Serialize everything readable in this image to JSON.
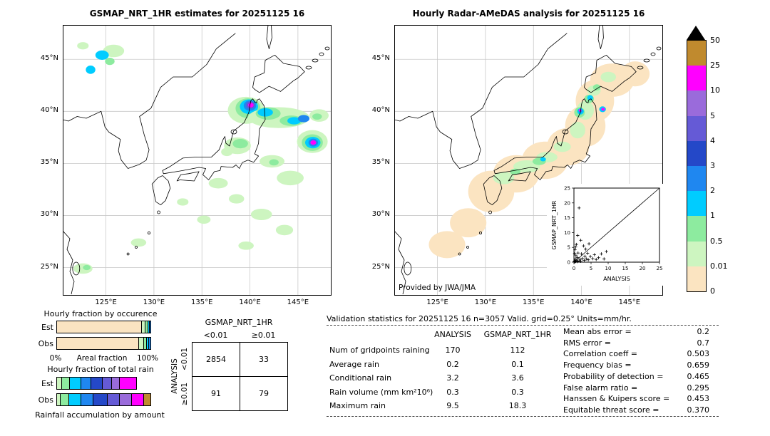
{
  "left_map": {
    "title": "GSMAP_NRT_1HR estimates for 20251125 16"
  },
  "right_map": {
    "title": "Hourly Radar-AMeDAS analysis for 20251125 16",
    "credit": "Provided by JWA/JMA"
  },
  "geo": {
    "lat_ticks": [
      {
        "value": 45,
        "label": "45°N"
      },
      {
        "value": 40,
        "label": "40°N"
      },
      {
        "value": 35,
        "label": "35°N"
      },
      {
        "value": 30,
        "label": "30°N"
      },
      {
        "value": 25,
        "label": "25°N"
      }
    ],
    "lon_ticks": [
      {
        "value": 125,
        "label": "125°E"
      },
      {
        "value": 130,
        "label": "130°E"
      },
      {
        "value": 135,
        "label": "135°E"
      },
      {
        "value": 140,
        "label": "140°E"
      },
      {
        "value": 145,
        "label": "145°E"
      }
    ]
  },
  "colorbar": {
    "labels": [
      "50",
      "25",
      "10",
      "5",
      "4",
      "3",
      "2",
      "1",
      "0.5",
      "0.01",
      "0"
    ],
    "colors": [
      "#c08a2e",
      "#ff00ff",
      "#9a6bdb",
      "#655ad6",
      "#2448c8",
      "#1f87f0",
      "#00ccff",
      "#8deb9f",
      "#cdf5c0",
      "#fbe4c1"
    ],
    "overflow_color": "#000000",
    "units": "mm/hr"
  },
  "occurrence_chart": {
    "title": "Hourly fraction by occurence",
    "axis_min": "0%",
    "axis_max": "100%",
    "axis_label": "Areal fraction"
  },
  "total_chart": {
    "title": "Hourly fraction of total rain",
    "caption": "Rainfall accumulation by amount"
  },
  "contingency": {
    "top_title": "GSMAP_NRT_1HR",
    "side_title": "ANALYSIS",
    "col_labels": [
      "<0.01",
      "≥0.01"
    ],
    "row_labels": [
      "<0.01",
      "≥0.01"
    ],
    "values": [
      [
        "2854",
        "33"
      ],
      [
        "91",
        "79"
      ]
    ]
  },
  "validation": {
    "title": "Validation statistics for 20251125 16  n=3057 Valid. grid=0.25° Units=mm/hr.",
    "columns": [
      "ANALYSIS",
      "GSMAP_NRT_1HR"
    ],
    "rows": [
      {
        "label": "Num of gridpoints raining",
        "values": [
          "170",
          "112"
        ]
      },
      {
        "label": "Average rain",
        "values": [
          "0.2",
          "0.1"
        ]
      },
      {
        "label": "Conditional rain",
        "values": [
          "3.2",
          "3.6"
        ]
      },
      {
        "label": "Rain volume (mm km²10⁶)",
        "values": [
          "0.3",
          "0.3"
        ]
      },
      {
        "label": "Maximum rain",
        "values": [
          "9.5",
          "18.3"
        ]
      }
    ]
  },
  "scores": [
    {
      "label": "Mean abs error",
      "value": "0.2"
    },
    {
      "label": "RMS error",
      "value": "0.7"
    },
    {
      "label": "Correlation coeff",
      "value": "0.503"
    },
    {
      "label": "Frequency bias",
      "value": "0.659"
    },
    {
      "label": "Probability of detection",
      "value": "0.465"
    },
    {
      "label": "False alarm ratio",
      "value": "0.295"
    },
    {
      "label": "Hanssen & Kuipers score",
      "value": "0.453"
    },
    {
      "label": "Equitable threat score",
      "value": "0.370"
    }
  ],
  "chart_data": [
    {
      "name": "gsmap_map",
      "type": "heatmap",
      "title": "GSMAP_NRT_1HR estimates for 20251125 16",
      "units": "mm/hr",
      "lon_range": [
        120.5,
        148.5
      ],
      "lat_range": [
        22.3,
        48.3
      ],
      "scale_levels": [
        0,
        0.01,
        0.5,
        1,
        2,
        3,
        4,
        5,
        10,
        25,
        50
      ],
      "blobs": [
        [
          125.8,
          45.8,
          1.1,
          0.6,
          "#cdf5c0"
        ],
        [
          124.6,
          45.4,
          0.7,
          0.45,
          "#00ccff"
        ],
        [
          125.4,
          44.8,
          0.5,
          0.35,
          "#8deb9f"
        ],
        [
          123.4,
          44.0,
          0.5,
          0.4,
          "#00ccff"
        ],
        [
          122.6,
          46.3,
          0.6,
          0.35,
          "#cdf5c0"
        ],
        [
          139.6,
          40.1,
          1.9,
          1.3,
          "#cdf5c0"
        ],
        [
          139.8,
          40.3,
          1.3,
          0.95,
          "#8deb9f"
        ],
        [
          139.9,
          40.45,
          0.95,
          0.7,
          "#00ccff"
        ],
        [
          140.0,
          40.55,
          0.65,
          0.5,
          "#1f87f0"
        ],
        [
          140.05,
          40.6,
          0.45,
          0.35,
          "#655ad6"
        ],
        [
          140.1,
          40.6,
          0.28,
          0.22,
          "#ff00ff"
        ],
        [
          143.0,
          39.4,
          3.2,
          1.0,
          "#cdf5c0"
        ],
        [
          141.9,
          39.8,
          1.3,
          0.6,
          "#8deb9f"
        ],
        [
          141.6,
          39.9,
          0.8,
          0.4,
          "#00ccff"
        ],
        [
          144.3,
          39.1,
          1.2,
          0.5,
          "#8deb9f"
        ],
        [
          144.6,
          39.1,
          0.7,
          0.35,
          "#00ccff"
        ],
        [
          145.6,
          39.3,
          0.6,
          0.35,
          "#1f87f0"
        ],
        [
          147.2,
          39.6,
          1.0,
          0.6,
          "#cdf5c0"
        ],
        [
          147.0,
          39.5,
          0.5,
          0.3,
          "#8deb9f"
        ],
        [
          146.5,
          37.1,
          1.6,
          1.1,
          "#cdf5c0"
        ],
        [
          146.5,
          37.0,
          1.1,
          0.8,
          "#8deb9f"
        ],
        [
          146.55,
          37.0,
          0.8,
          0.55,
          "#00ccff"
        ],
        [
          146.6,
          37.0,
          0.5,
          0.38,
          "#1f87f0"
        ],
        [
          146.6,
          37.0,
          0.3,
          0.22,
          "#ff00ff"
        ],
        [
          138.7,
          36.7,
          1.4,
          0.8,
          "#cdf5c0"
        ],
        [
          139.0,
          36.9,
          0.8,
          0.45,
          "#8deb9f"
        ],
        [
          137.6,
          36.1,
          0.6,
          0.4,
          "#cdf5c0"
        ],
        [
          142.3,
          35.2,
          1.3,
          0.6,
          "#cdf5c0"
        ],
        [
          142.5,
          35.1,
          0.5,
          0.3,
          "#8deb9f"
        ],
        [
          144.2,
          33.6,
          1.4,
          0.7,
          "#cdf5c0"
        ],
        [
          136.7,
          33.1,
          1.0,
          0.5,
          "#cdf5c0"
        ],
        [
          138.6,
          31.6,
          0.8,
          0.45,
          "#cdf5c0"
        ],
        [
          141.2,
          30.1,
          1.1,
          0.55,
          "#cdf5c0"
        ],
        [
          143.6,
          28.6,
          0.9,
          0.5,
          "#cdf5c0"
        ],
        [
          135.2,
          29.6,
          0.7,
          0.4,
          "#cdf5c0"
        ],
        [
          139.6,
          27.1,
          0.8,
          0.4,
          "#cdf5c0"
        ],
        [
          133.0,
          31.3,
          0.6,
          0.35,
          "#cdf5c0"
        ],
        [
          128.4,
          27.4,
          0.8,
          0.4,
          "#cdf5c0"
        ],
        [
          122.6,
          24.9,
          1.0,
          0.5,
          "#cdf5c0"
        ],
        [
          123.0,
          25.0,
          0.4,
          0.25,
          "#8deb9f"
        ]
      ]
    },
    {
      "name": "radar_map",
      "type": "heatmap",
      "title": "Hourly Radar-AMeDAS analysis for 20251125 16",
      "units": "mm/hr",
      "lon_range": [
        120.5,
        148.5
      ],
      "lat_range": [
        22.3,
        48.3
      ],
      "scale_levels": [
        0,
        0.01,
        0.5,
        1,
        2,
        3,
        4,
        5,
        10,
        25,
        50
      ],
      "blobs": [
        [
          126.0,
          27.2,
          1.9,
          1.3,
          "#fbe4c1"
        ],
        [
          128.2,
          29.3,
          1.9,
          1.4,
          "#fbe4c1"
        ],
        [
          130.6,
          32.3,
          2.4,
          2.0,
          "#fbe4c1"
        ],
        [
          133.2,
          34.0,
          2.4,
          1.8,
          "#fbe4c1"
        ],
        [
          136.2,
          35.3,
          2.4,
          1.8,
          "#fbe4c1"
        ],
        [
          138.6,
          36.6,
          2.2,
          1.8,
          "#fbe4c1"
        ],
        [
          140.4,
          38.6,
          2.1,
          2.0,
          "#fbe4c1"
        ],
        [
          141.4,
          41.0,
          2.0,
          2.0,
          "#fbe4c1"
        ],
        [
          143.2,
          43.0,
          2.3,
          1.6,
          "#fbe4c1"
        ],
        [
          145.6,
          43.6,
          1.5,
          1.2,
          "#fbe4c1"
        ],
        [
          131.9,
          33.6,
          1.1,
          0.6,
          "#cdf5c0"
        ],
        [
          134.3,
          34.7,
          1.4,
          0.6,
          "#cdf5c0"
        ],
        [
          136.4,
          35.6,
          1.1,
          0.5,
          "#cdf5c0"
        ],
        [
          138.0,
          36.6,
          0.9,
          0.5,
          "#cdf5c0"
        ],
        [
          139.6,
          38.2,
          0.8,
          0.8,
          "#cdf5c0"
        ],
        [
          140.4,
          40.1,
          0.9,
          0.9,
          "#cdf5c0"
        ],
        [
          141.3,
          42.0,
          0.7,
          0.5,
          "#cdf5c0"
        ],
        [
          142.8,
          43.3,
          0.8,
          0.5,
          "#cdf5c0"
        ],
        [
          135.6,
          35.2,
          0.7,
          0.35,
          "#8deb9f"
        ],
        [
          133.1,
          34.2,
          0.55,
          0.3,
          "#8deb9f"
        ],
        [
          139.8,
          39.9,
          0.55,
          0.5,
          "#8deb9f"
        ],
        [
          140.8,
          41.2,
          0.5,
          0.4,
          "#8deb9f"
        ],
        [
          141.6,
          42.3,
          0.4,
          0.3,
          "#8deb9f"
        ],
        [
          139.9,
          40.0,
          0.35,
          0.3,
          "#00ccff"
        ],
        [
          140.9,
          41.3,
          0.3,
          0.25,
          "#00ccff"
        ],
        [
          136.0,
          35.4,
          0.3,
          0.2,
          "#00ccff"
        ],
        [
          142.2,
          40.2,
          0.35,
          0.28,
          "#00ccff"
        ],
        [
          139.9,
          40.05,
          0.2,
          0.17,
          "#1f87f0"
        ],
        [
          139.85,
          40.1,
          0.14,
          0.12,
          "#ff00ff"
        ],
        [
          142.25,
          40.2,
          0.18,
          0.14,
          "#ff00ff"
        ]
      ]
    },
    {
      "name": "validation_scatter",
      "type": "scatter",
      "xlabel": "ANALYSIS",
      "ylabel": "GSMAP_NRT_1HR",
      "xlim": [
        0,
        25
      ],
      "ylim": [
        0,
        25
      ],
      "ticks": [
        0,
        5,
        10,
        15,
        20,
        25
      ],
      "identity_line": true,
      "points": [
        [
          0.1,
          0.1
        ],
        [
          0.2,
          0.4
        ],
        [
          0.3,
          0.1
        ],
        [
          0.4,
          1.1
        ],
        [
          0.5,
          0.3
        ],
        [
          0.6,
          2.2
        ],
        [
          0.8,
          0.7
        ],
        [
          1.0,
          0.2
        ],
        [
          1.0,
          1.6
        ],
        [
          1.2,
          3.1
        ],
        [
          1.5,
          0.4
        ],
        [
          1.5,
          18.3
        ],
        [
          1.8,
          1.0
        ],
        [
          2.0,
          0.3
        ],
        [
          2.2,
          2.8
        ],
        [
          2.5,
          1.2
        ],
        [
          2.8,
          5.5
        ],
        [
          3.0,
          0.6
        ],
        [
          3.2,
          2.0
        ],
        [
          3.6,
          1.1
        ],
        [
          4.0,
          3.0
        ],
        [
          4.2,
          0.8
        ],
        [
          4.8,
          1.9
        ],
        [
          5.5,
          1.2
        ],
        [
          6.0,
          2.5
        ],
        [
          6.5,
          0.9
        ],
        [
          7.2,
          1.5
        ],
        [
          8.0,
          2.8
        ],
        [
          8.8,
          1.1
        ],
        [
          9.5,
          3.6
        ],
        [
          0.3,
          4.2
        ],
        [
          0.7,
          6.0
        ],
        [
          2.0,
          7.4
        ],
        [
          1.1,
          9.0
        ],
        [
          0.2,
          2.9
        ],
        [
          3.4,
          4.4
        ],
        [
          0.5,
          5.1
        ],
        [
          4.4,
          6.2
        ]
      ]
    },
    {
      "name": "occurrence_fraction",
      "type": "bar",
      "title": "Hourly fraction by occurence",
      "xlabel": "Areal fraction",
      "x_range_pct": [
        0,
        100
      ],
      "rows": [
        {
          "label": "Est",
          "segments": [
            {
              "color": "#fbe4c1",
              "pct": 91
            },
            {
              "color": "#cdf5c0",
              "pct": 4
            },
            {
              "color": "#8deb9f",
              "pct": 2.5
            },
            {
              "color": "#00ccff",
              "pct": 1.5
            },
            {
              "color": "#1f87f0",
              "pct": 1
            }
          ]
        },
        {
          "label": "Obs",
          "segments": [
            {
              "color": "#fbe4c1",
              "pct": 88
            },
            {
              "color": "#cdf5c0",
              "pct": 5
            },
            {
              "color": "#8deb9f",
              "pct": 3.5
            },
            {
              "color": "#00ccff",
              "pct": 2.2
            },
            {
              "color": "#1f87f0",
              "pct": 1.3
            }
          ]
        }
      ]
    },
    {
      "name": "total_rain_fraction",
      "type": "bar",
      "title": "Hourly fraction of total rain",
      "caption": "Rainfall accumulation by amount",
      "x_range_pct": [
        0,
        100
      ],
      "rows": [
        {
          "label": "Est",
          "segments": [
            {
              "color": "#cdf5c0",
              "pct": 5
            },
            {
              "color": "#8deb9f",
              "pct": 9
            },
            {
              "color": "#00ccff",
              "pct": 12
            },
            {
              "color": "#1f87f0",
              "pct": 11
            },
            {
              "color": "#2448c8",
              "pct": 12
            },
            {
              "color": "#655ad6",
              "pct": 10
            },
            {
              "color": "#9a6bdb",
              "pct": 8
            },
            {
              "color": "#ff00ff",
              "pct": 18
            }
          ]
        },
        {
          "label": "Obs",
          "segments": [
            {
              "color": "#cdf5c0",
              "pct": 4
            },
            {
              "color": "#8deb9f",
              "pct": 9
            },
            {
              "color": "#00ccff",
              "pct": 13
            },
            {
              "color": "#1f87f0",
              "pct": 13
            },
            {
              "color": "#2448c8",
              "pct": 15
            },
            {
              "color": "#655ad6",
              "pct": 13
            },
            {
              "color": "#9a6bdb",
              "pct": 13
            },
            {
              "color": "#ff00ff",
              "pct": 13
            },
            {
              "color": "#c08a2e",
              "pct": 7
            }
          ]
        }
      ]
    },
    {
      "name": "contingency_table",
      "type": "table",
      "columns": [
        "<0.01",
        "≥0.01"
      ],
      "rows": [
        "<0.01",
        "≥0.01"
      ],
      "values": [
        [
          2854,
          33
        ],
        [
          91,
          79
        ]
      ]
    },
    {
      "name": "validation_table",
      "type": "table",
      "columns": [
        "ANALYSIS",
        "GSMAP_NRT_1HR"
      ],
      "rows": [
        [
          "Num of gridpoints raining",
          170,
          112
        ],
        [
          "Average rain",
          0.2,
          0.1
        ],
        [
          "Conditional rain",
          3.2,
          3.6
        ],
        [
          "Rain volume (mm km²10⁶)",
          0.3,
          0.3
        ],
        [
          "Maximum rain",
          9.5,
          18.3
        ]
      ]
    }
  ]
}
